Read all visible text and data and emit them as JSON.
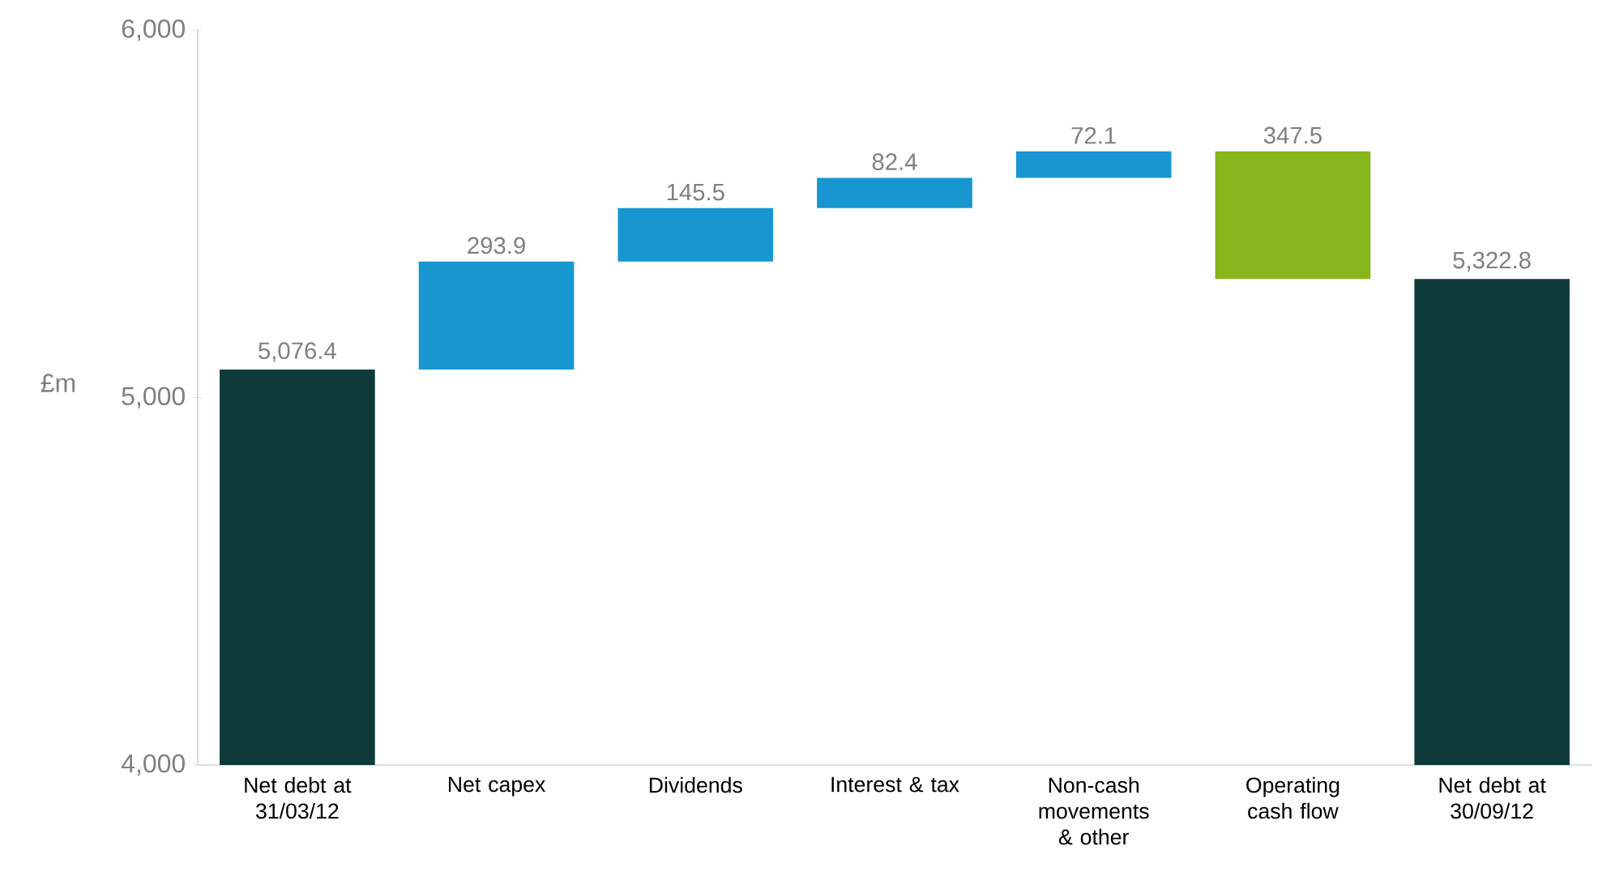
{
  "chart_data": {
    "type": "bar",
    "ylabel": "£m",
    "categories": [
      "Net debt at 31/03/12",
      "Net capex",
      "Dividends",
      "Interest & tax",
      "Non-cash movements & other",
      "Operating cash flow",
      "Net debt at 30/09/12"
    ],
    "values": [
      5076.4,
      293.9,
      145.5,
      82.4,
      72.1,
      -347.5,
      5322.8
    ],
    "base": [
      null,
      5076.4,
      5370.3,
      5515.8,
      5598.2,
      5670.3,
      null
    ],
    "value_labels": [
      "5,076.4",
      "293.9",
      "145.5",
      "82.4",
      "72.1",
      "347.5",
      "5,322.8"
    ],
    "colors": [
      "#0f3a3c",
      "#1796cf",
      "#1796cf",
      "#1796cf",
      "#1796cf",
      "#86b51c",
      "#0f3a3c"
    ],
    "ylim": [
      4000,
      6000
    ],
    "yticks": [
      {
        "value": 4000,
        "label": "4,000"
      },
      {
        "value": 5000,
        "label": "5,000"
      },
      {
        "value": 6000,
        "label": "6,000"
      }
    ]
  }
}
